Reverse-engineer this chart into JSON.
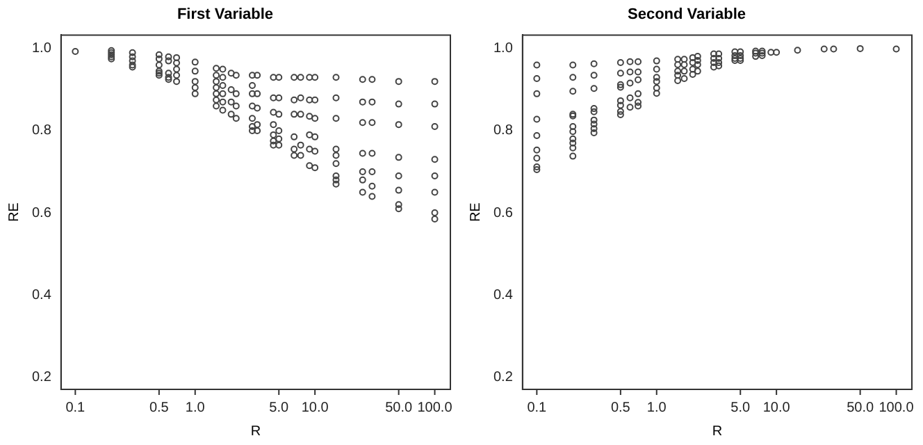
{
  "chart_data": [
    {
      "type": "scatter",
      "title": "First Variable",
      "xlabel": "R",
      "ylabel": "RE",
      "log": "x",
      "grid": false,
      "legend": false,
      "marker": "circle",
      "xlim": [
        0.076,
        135
      ],
      "xticks": [
        {
          "value": 0.1,
          "label": "0.1"
        },
        {
          "value": 0.5,
          "label": "0.5"
        },
        {
          "value": 1,
          "label": "1.0"
        },
        {
          "value": 5,
          "label": "5.0"
        },
        {
          "value": 10,
          "label": "10.0"
        },
        {
          "value": 50,
          "label": "50.0"
        },
        {
          "value": 100,
          "label": "100.0"
        }
      ],
      "ylim": [
        0.17,
        1.033
      ],
      "yticks": [
        0.2,
        0.4,
        0.6,
        0.8,
        {
          "value": 1,
          "label": "1.0"
        }
      ],
      "series": [
        {
          "color": "#444444",
          "x": [
            0.1,
            0.2,
            0.2,
            0.2,
            0.2,
            0.2,
            0.3,
            0.3,
            0.3,
            0.3,
            0.3,
            0.5,
            0.5,
            0.5,
            0.5,
            0.5,
            0.5,
            0.6,
            0.6,
            0.6,
            0.6,
            0.6,
            0.7,
            0.7,
            0.7,
            0.7,
            0.7,
            1,
            1,
            1,
            1,
            1,
            1.5,
            1.5,
            1.5,
            1.5,
            1.5,
            1.5,
            1.5,
            1.7,
            1.7,
            1.7,
            1.7,
            1.7,
            1.7,
            2,
            2,
            2,
            2,
            2.2,
            2.2,
            2.2,
            2.2,
            3,
            3,
            3,
            3,
            3,
            3,
            3,
            3.3,
            3.3,
            3.3,
            3.3,
            3.3,
            4.5,
            4.5,
            4.5,
            4.5,
            4.5,
            4.5,
            4.5,
            5,
            5,
            5,
            5,
            5,
            5,
            6.7,
            6.7,
            6.7,
            6.7,
            6.7,
            6.7,
            7.6,
            7.6,
            7.6,
            7.6,
            7.6,
            9,
            9,
            9,
            9,
            9,
            9,
            10,
            10,
            10,
            10,
            10,
            10,
            15,
            15,
            15,
            15,
            15,
            15,
            15,
            15,
            15,
            25,
            25,
            25,
            25,
            25,
            25,
            25,
            30,
            30,
            30,
            30,
            30,
            30,
            30,
            50,
            50,
            50,
            50,
            50,
            50,
            50,
            50,
            100,
            100,
            100,
            100,
            100,
            100,
            100,
            100
          ],
          "values": [
            0.993,
            0.995,
            0.99,
            0.985,
            0.98,
            0.975,
            0.99,
            0.98,
            0.97,
            0.96,
            0.955,
            0.985,
            0.975,
            0.96,
            0.945,
            0.94,
            0.935,
            0.98,
            0.97,
            0.94,
            0.93,
            0.925,
            0.978,
            0.965,
            0.95,
            0.935,
            0.92,
            0.967,
            0.945,
            0.92,
            0.905,
            0.89,
            0.952,
            0.935,
            0.92,
            0.905,
            0.89,
            0.875,
            0.86,
            0.95,
            0.93,
            0.91,
            0.89,
            0.87,
            0.85,
            0.94,
            0.9,
            0.87,
            0.84,
            0.935,
            0.89,
            0.86,
            0.83,
            0.935,
            0.91,
            0.89,
            0.86,
            0.83,
            0.81,
            0.8,
            0.935,
            0.89,
            0.855,
            0.815,
            0.8,
            0.93,
            0.88,
            0.845,
            0.815,
            0.79,
            0.775,
            0.765,
            0.93,
            0.88,
            0.84,
            0.8,
            0.78,
            0.765,
            0.93,
            0.875,
            0.84,
            0.785,
            0.755,
            0.74,
            0.93,
            0.88,
            0.84,
            0.765,
            0.74,
            0.93,
            0.875,
            0.835,
            0.79,
            0.755,
            0.715,
            0.93,
            0.875,
            0.83,
            0.785,
            0.75,
            0.71,
            0.93,
            0.88,
            0.83,
            0.755,
            0.74,
            0.72,
            0.69,
            0.68,
            0.67,
            0.925,
            0.87,
            0.82,
            0.745,
            0.7,
            0.68,
            0.65,
            0.925,
            0.87,
            0.82,
            0.745,
            0.7,
            0.665,
            0.64,
            0.92,
            0.865,
            0.815,
            0.735,
            0.69,
            0.655,
            0.62,
            0.61,
            0.92,
            0.865,
            0.81,
            0.73,
            0.69,
            0.65,
            0.6,
            0.585
          ]
        }
      ]
    },
    {
      "type": "scatter",
      "title": "Second Variable",
      "xlabel": "R",
      "ylabel": "RE",
      "log": "x",
      "grid": false,
      "legend": false,
      "marker": "circle",
      "xlim": [
        0.076,
        135
      ],
      "xticks": [
        {
          "value": 0.1,
          "label": "0.1"
        },
        {
          "value": 0.5,
          "label": "0.5"
        },
        {
          "value": 1,
          "label": "1.0"
        },
        {
          "value": 5,
          "label": "5.0"
        },
        {
          "value": 10,
          "label": "10.0"
        },
        {
          "value": 50,
          "label": "50.0"
        },
        {
          "value": 100,
          "label": "100.0"
        }
      ],
      "ylim": [
        0.17,
        1.033
      ],
      "yticks": [
        0.2,
        0.4,
        0.6,
        0.8,
        {
          "value": 1,
          "label": "1.0"
        }
      ],
      "series": [
        {
          "color": "#444444",
          "x": [
            0.1,
            0.1,
            0.1,
            0.1,
            0.1,
            0.1,
            0.1,
            0.1,
            0.1,
            0.2,
            0.2,
            0.2,
            0.2,
            0.2,
            0.2,
            0.2,
            0.2,
            0.2,
            0.2,
            0.2,
            0.3,
            0.3,
            0.3,
            0.3,
            0.3,
            0.3,
            0.3,
            0.3,
            0.3,
            0.5,
            0.5,
            0.5,
            0.5,
            0.5,
            0.5,
            0.5,
            0.5,
            0.6,
            0.6,
            0.6,
            0.6,
            0.6,
            0.7,
            0.7,
            0.7,
            0.7,
            0.7,
            0.7,
            1,
            1,
            1,
            1,
            1,
            1,
            1.5,
            1.5,
            1.5,
            1.5,
            1.5,
            1.7,
            1.7,
            1.7,
            1.7,
            2,
            2,
            2,
            2,
            2.2,
            2.2,
            2.2,
            2.2,
            3,
            3,
            3,
            3,
            3.3,
            3.3,
            3.3,
            3.3,
            4.5,
            4.5,
            4.5,
            4.5,
            5,
            5,
            5,
            5,
            6.7,
            6.7,
            6.7,
            7.6,
            7.6,
            7.6,
            9,
            10,
            15,
            25,
            30,
            50,
            100
          ],
          "values": [
            0.96,
            0.927,
            0.89,
            0.828,
            0.788,
            0.753,
            0.733,
            0.712,
            0.705,
            0.96,
            0.93,
            0.896,
            0.84,
            0.836,
            0.81,
            0.798,
            0.78,
            0.77,
            0.758,
            0.738,
            0.963,
            0.935,
            0.903,
            0.854,
            0.846,
            0.826,
            0.816,
            0.805,
            0.795,
            0.966,
            0.94,
            0.912,
            0.906,
            0.873,
            0.862,
            0.847,
            0.839,
            0.968,
            0.943,
            0.916,
            0.88,
            0.857,
            0.968,
            0.943,
            0.924,
            0.89,
            0.869,
            0.86,
            0.97,
            0.95,
            0.93,
            0.92,
            0.904,
            0.891,
            0.974,
            0.961,
            0.945,
            0.935,
            0.922,
            0.974,
            0.961,
            0.945,
            0.927,
            0.978,
            0.966,
            0.95,
            0.937,
            0.981,
            0.971,
            0.961,
            0.945,
            0.987,
            0.976,
            0.966,
            0.955,
            0.987,
            0.976,
            0.966,
            0.958,
            0.992,
            0.983,
            0.976,
            0.971,
            0.992,
            0.983,
            0.976,
            0.971,
            0.994,
            0.989,
            0.981,
            0.994,
            0.989,
            0.983,
            0.991,
            0.991,
            0.996,
            0.999,
            0.999,
            1.0,
            0.999
          ]
        }
      ]
    }
  ]
}
